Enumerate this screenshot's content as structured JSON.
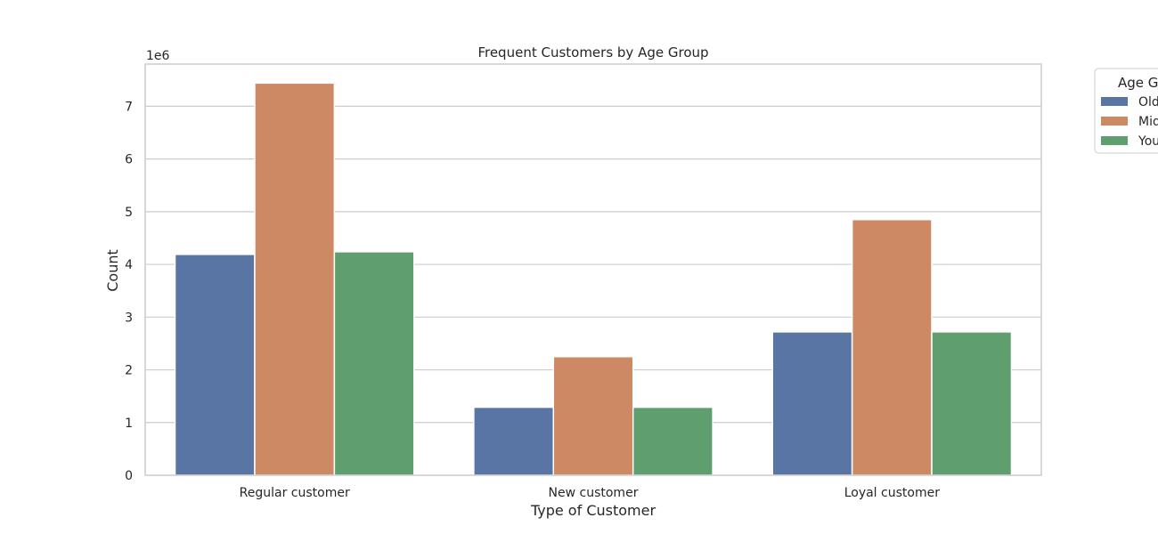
{
  "chart_data": {
    "type": "bar",
    "title": "Frequent Customers by Age Group",
    "xlabel": "Type of Customer",
    "ylabel": "Count",
    "y_offset_label": "1e6",
    "ylim": [
      0,
      7800000
    ],
    "yticks": [
      0,
      1,
      2,
      3,
      4,
      5,
      6,
      7
    ],
    "ytick_scale": 1000000,
    "grid": "horizontal",
    "legend_placement": "outside-top-right",
    "legend_title": "Age G",
    "categories": [
      "Regular customer",
      "New customer",
      "Loyal customer"
    ],
    "series": [
      {
        "name": "Old",
        "color": "#5875a4",
        "values": [
          4190000,
          1290000,
          2720000
        ]
      },
      {
        "name": "Mid",
        "color": "#cc8963",
        "values": [
          7440000,
          2250000,
          4850000
        ]
      },
      {
        "name": "You",
        "color": "#5f9e6e",
        "values": [
          4240000,
          1290000,
          2720000
        ]
      }
    ]
  }
}
